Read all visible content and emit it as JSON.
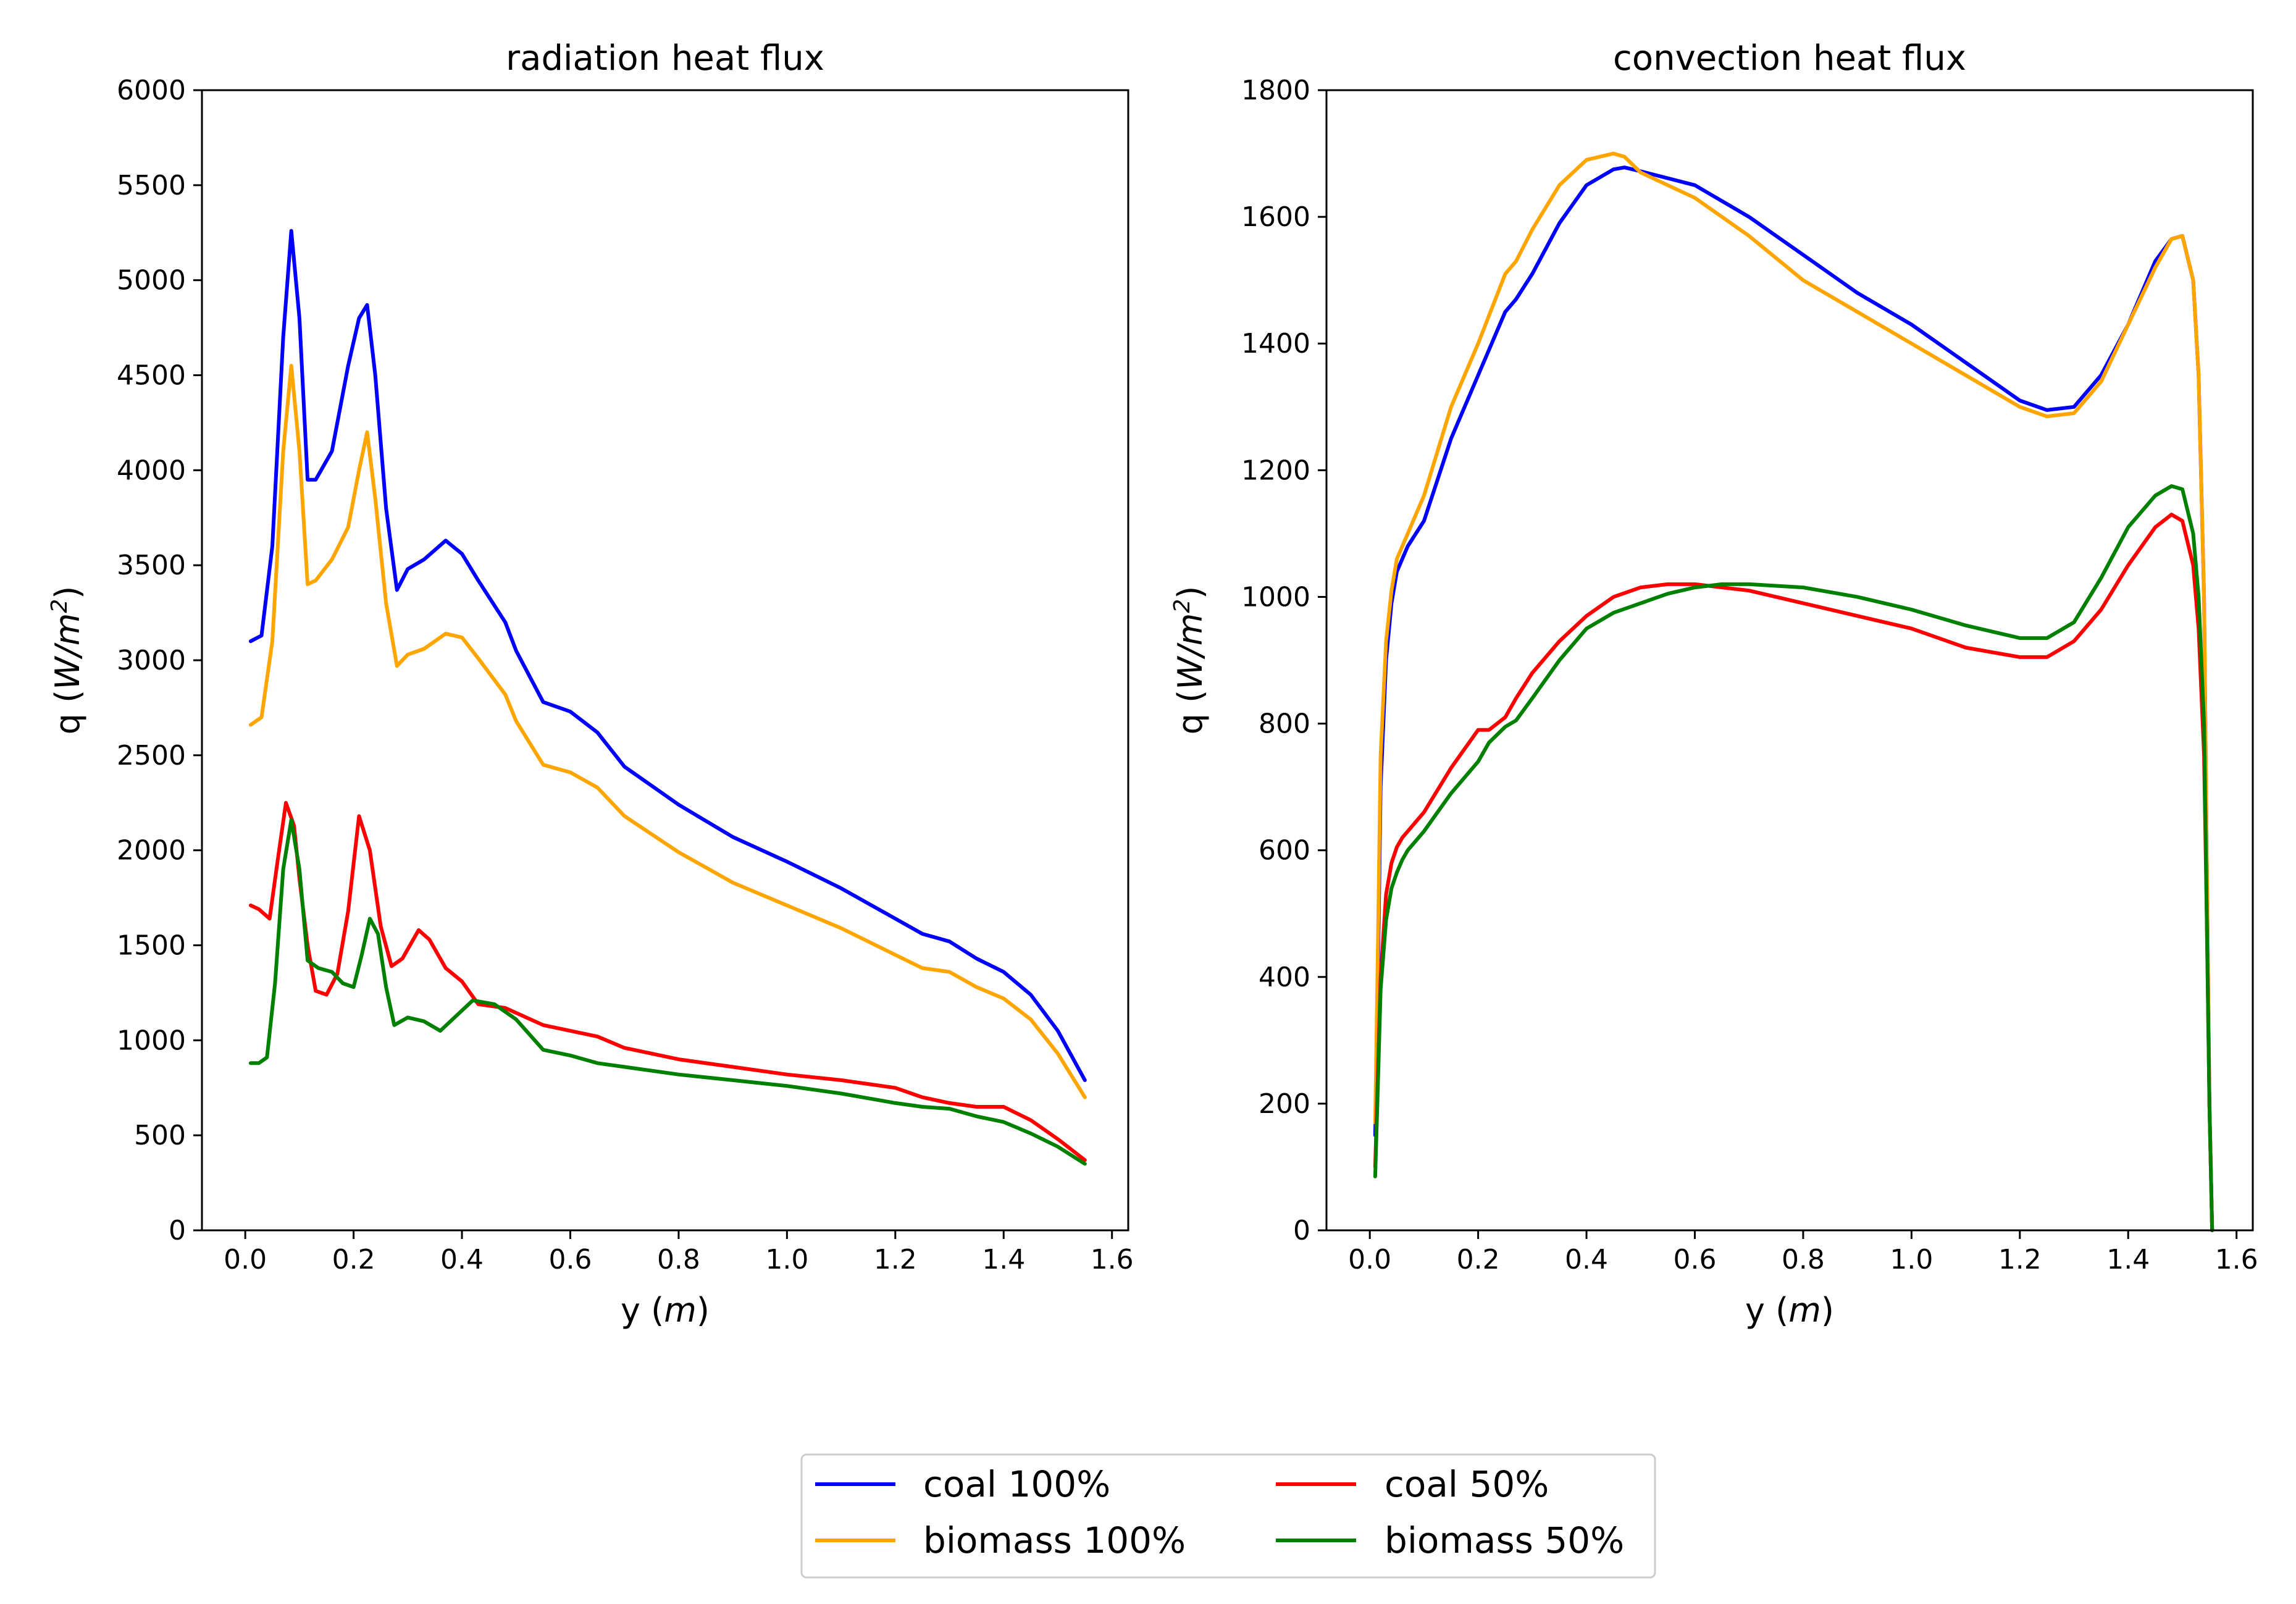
{
  "chart_data": [
    {
      "type": "line",
      "title": "radiation heat flux",
      "xlabel_prefix": "y (",
      "xlabel_unit": "m",
      "xlabel_suffix": ")",
      "ylabel_prefix": "q (",
      "ylabel_unit": "W/m",
      "ylabel_exp": "2",
      "ylabel_suffix": ")",
      "xlim": [
        -0.08,
        1.63
      ],
      "ylim": [
        0,
        6000
      ],
      "xticks": [
        0.0,
        0.2,
        0.4,
        0.6,
        0.8,
        1.0,
        1.2,
        1.4,
        1.6
      ],
      "xtick_labels": [
        "0.0",
        "0.2",
        "0.4",
        "0.6",
        "0.8",
        "1.0",
        "1.2",
        "1.4",
        "1.6"
      ],
      "yticks": [
        0,
        500,
        1000,
        1500,
        2000,
        2500,
        3000,
        3500,
        4000,
        4500,
        5000,
        5500,
        6000
      ],
      "ytick_labels": [
        "0",
        "500",
        "1000",
        "1500",
        "2000",
        "2500",
        "3000",
        "3500",
        "4000",
        "4500",
        "5000",
        "5500",
        "6000"
      ],
      "series": [
        {
          "name": "coal 100%",
          "color": "#0000ff",
          "x": [
            0.01,
            0.03,
            0.05,
            0.07,
            0.085,
            0.1,
            0.115,
            0.13,
            0.16,
            0.19,
            0.21,
            0.225,
            0.24,
            0.26,
            0.28,
            0.3,
            0.33,
            0.37,
            0.4,
            0.43,
            0.48,
            0.5,
            0.55,
            0.6,
            0.65,
            0.7,
            0.8,
            0.9,
            1.0,
            1.1,
            1.2,
            1.25,
            1.3,
            1.35,
            1.4,
            1.45,
            1.5,
            1.55
          ],
          "y": [
            3100,
            3130,
            3600,
            4700,
            5260,
            4800,
            3950,
            3950,
            4100,
            4550,
            4800,
            4870,
            4500,
            3800,
            3370,
            3480,
            3530,
            3630,
            3560,
            3420,
            3200,
            3050,
            2780,
            2730,
            2620,
            2440,
            2240,
            2070,
            1940,
            1800,
            1640,
            1560,
            1520,
            1430,
            1360,
            1240,
            1050,
            790
          ]
        },
        {
          "name": "biomass 100%",
          "color": "#ffa500",
          "x": [
            0.01,
            0.03,
            0.05,
            0.07,
            0.085,
            0.1,
            0.115,
            0.13,
            0.16,
            0.19,
            0.21,
            0.225,
            0.24,
            0.26,
            0.28,
            0.3,
            0.33,
            0.37,
            0.4,
            0.43,
            0.48,
            0.5,
            0.55,
            0.6,
            0.65,
            0.7,
            0.8,
            0.9,
            1.0,
            1.1,
            1.2,
            1.25,
            1.3,
            1.35,
            1.4,
            1.45,
            1.5,
            1.55
          ],
          "y": [
            2660,
            2700,
            3100,
            4100,
            4550,
            4100,
            3400,
            3420,
            3530,
            3700,
            4000,
            4200,
            3850,
            3300,
            2970,
            3030,
            3060,
            3140,
            3120,
            3010,
            2820,
            2680,
            2450,
            2410,
            2330,
            2180,
            1990,
            1830,
            1710,
            1590,
            1450,
            1380,
            1360,
            1280,
            1220,
            1110,
            930,
            700
          ]
        },
        {
          "name": "coal 50%",
          "color": "#ff0000",
          "x": [
            0.01,
            0.025,
            0.045,
            0.06,
            0.075,
            0.09,
            0.1,
            0.115,
            0.13,
            0.15,
            0.17,
            0.19,
            0.21,
            0.23,
            0.25,
            0.27,
            0.29,
            0.32,
            0.34,
            0.37,
            0.4,
            0.43,
            0.48,
            0.55,
            0.65,
            0.7,
            0.8,
            0.9,
            1.0,
            1.1,
            1.2,
            1.25,
            1.3,
            1.35,
            1.4,
            1.45,
            1.5,
            1.55
          ],
          "y": [
            1710,
            1690,
            1640,
            1950,
            2250,
            2130,
            1850,
            1500,
            1260,
            1240,
            1350,
            1680,
            2180,
            2000,
            1600,
            1390,
            1430,
            1580,
            1530,
            1380,
            1310,
            1190,
            1170,
            1080,
            1020,
            960,
            900,
            860,
            820,
            790,
            750,
            700,
            670,
            650,
            650,
            580,
            480,
            370
          ]
        },
        {
          "name": "biomass 50%",
          "color": "#008000",
          "x": [
            0.01,
            0.025,
            0.04,
            0.055,
            0.07,
            0.085,
            0.1,
            0.115,
            0.135,
            0.16,
            0.18,
            0.2,
            0.215,
            0.23,
            0.245,
            0.26,
            0.275,
            0.3,
            0.33,
            0.36,
            0.39,
            0.42,
            0.46,
            0.5,
            0.55,
            0.6,
            0.65,
            0.7,
            0.8,
            0.9,
            1.0,
            1.1,
            1.2,
            1.25,
            1.3,
            1.35,
            1.4,
            1.45,
            1.5,
            1.55
          ],
          "y": [
            880,
            880,
            910,
            1300,
            1900,
            2160,
            1900,
            1420,
            1380,
            1360,
            1300,
            1280,
            1450,
            1640,
            1560,
            1280,
            1080,
            1120,
            1100,
            1050,
            1130,
            1210,
            1190,
            1110,
            950,
            920,
            880,
            860,
            820,
            790,
            760,
            720,
            670,
            650,
            640,
            600,
            570,
            510,
            440,
            350
          ]
        }
      ]
    },
    {
      "type": "line",
      "title": "convection heat flux",
      "xlabel_prefix": "y (",
      "xlabel_unit": "m",
      "xlabel_suffix": ")",
      "ylabel_prefix": "q (",
      "ylabel_unit": "W/m",
      "ylabel_exp": "2",
      "ylabel_suffix": ")",
      "xlim": [
        -0.08,
        1.63
      ],
      "ylim": [
        0,
        1800
      ],
      "xticks": [
        0.0,
        0.2,
        0.4,
        0.6,
        0.8,
        1.0,
        1.2,
        1.4,
        1.6
      ],
      "xtick_labels": [
        "0.0",
        "0.2",
        "0.4",
        "0.6",
        "0.8",
        "1.0",
        "1.2",
        "1.4",
        "1.6"
      ],
      "yticks": [
        0,
        200,
        400,
        600,
        800,
        1000,
        1200,
        1400,
        1600,
        1800
      ],
      "ytick_labels": [
        "0",
        "200",
        "400",
        "600",
        "800",
        "1000",
        "1200",
        "1400",
        "1600",
        "1800"
      ],
      "series": [
        {
          "name": "coal 100%",
          "color": "#0000ff",
          "x": [
            0.01,
            0.015,
            0.02,
            0.03,
            0.04,
            0.05,
            0.07,
            0.1,
            0.15,
            0.2,
            0.25,
            0.27,
            0.3,
            0.35,
            0.4,
            0.45,
            0.47,
            0.5,
            0.6,
            0.7,
            0.8,
            0.9,
            1.0,
            1.1,
            1.2,
            1.25,
            1.3,
            1.35,
            1.4,
            1.45,
            1.48,
            1.5,
            1.52,
            1.53,
            1.54,
            1.545,
            1.55,
            1.555
          ],
          "y": [
            150,
            400,
            700,
            900,
            990,
            1040,
            1080,
            1120,
            1250,
            1350,
            1450,
            1470,
            1510,
            1590,
            1650,
            1675,
            1678,
            1672,
            1650,
            1600,
            1540,
            1480,
            1430,
            1370,
            1310,
            1295,
            1300,
            1350,
            1430,
            1530,
            1565,
            1570,
            1500,
            1350,
            1000,
            600,
            200,
            0
          ]
        },
        {
          "name": "biomass 100%",
          "color": "#ffa500",
          "x": [
            0.01,
            0.015,
            0.02,
            0.03,
            0.04,
            0.05,
            0.07,
            0.1,
            0.15,
            0.2,
            0.25,
            0.27,
            0.3,
            0.35,
            0.4,
            0.45,
            0.47,
            0.5,
            0.6,
            0.7,
            0.8,
            0.9,
            1.0,
            1.1,
            1.2,
            1.25,
            1.3,
            1.35,
            1.4,
            1.45,
            1.48,
            1.5,
            1.52,
            1.53,
            1.54,
            1.545,
            1.55,
            1.555
          ],
          "y": [
            170,
            450,
            750,
            930,
            1010,
            1060,
            1100,
            1160,
            1300,
            1400,
            1510,
            1530,
            1580,
            1650,
            1690,
            1700,
            1695,
            1670,
            1630,
            1570,
            1500,
            1450,
            1400,
            1350,
            1300,
            1285,
            1290,
            1340,
            1430,
            1520,
            1565,
            1570,
            1500,
            1350,
            1000,
            600,
            200,
            0
          ]
        },
        {
          "name": "coal 50%",
          "color": "#ff0000",
          "x": [
            0.01,
            0.015,
            0.02,
            0.03,
            0.04,
            0.05,
            0.06,
            0.07,
            0.1,
            0.15,
            0.2,
            0.22,
            0.25,
            0.27,
            0.3,
            0.35,
            0.4,
            0.45,
            0.5,
            0.55,
            0.6,
            0.7,
            0.8,
            0.9,
            1.0,
            1.1,
            1.2,
            1.25,
            1.3,
            1.35,
            1.4,
            1.45,
            1.48,
            1.5,
            1.52,
            1.53,
            1.54,
            1.545,
            1.55,
            1.555
          ],
          "y": [
            100,
            250,
            400,
            530,
            580,
            605,
            620,
            630,
            660,
            730,
            790,
            790,
            810,
            840,
            880,
            930,
            970,
            1000,
            1015,
            1020,
            1020,
            1010,
            990,
            970,
            950,
            920,
            905,
            905,
            930,
            980,
            1050,
            1110,
            1130,
            1120,
            1050,
            950,
            750,
            500,
            200,
            0
          ]
        },
        {
          "name": "biomass 50%",
          "color": "#008000",
          "x": [
            0.01,
            0.015,
            0.02,
            0.03,
            0.04,
            0.05,
            0.06,
            0.07,
            0.1,
            0.15,
            0.2,
            0.22,
            0.25,
            0.27,
            0.3,
            0.35,
            0.4,
            0.45,
            0.5,
            0.55,
            0.6,
            0.65,
            0.7,
            0.8,
            0.9,
            1.0,
            1.1,
            1.2,
            1.25,
            1.3,
            1.35,
            1.4,
            1.45,
            1.48,
            1.5,
            1.52,
            1.53,
            1.54,
            1.545,
            1.55,
            1.555
          ],
          "y": [
            85,
            230,
            380,
            490,
            540,
            565,
            585,
            600,
            630,
            690,
            740,
            770,
            795,
            805,
            840,
            900,
            950,
            975,
            990,
            1005,
            1015,
            1020,
            1020,
            1015,
            1000,
            980,
            955,
            935,
            935,
            960,
            1030,
            1110,
            1160,
            1175,
            1170,
            1100,
            1000,
            800,
            500,
            200,
            0
          ]
        }
      ]
    }
  ],
  "legend": {
    "items": [
      {
        "label": "coal 100%",
        "color": "#0000ff"
      },
      {
        "label": "coal 50%",
        "color": "#ff0000"
      },
      {
        "label": "biomass 100%",
        "color": "#ffa500"
      },
      {
        "label": "biomass 50%",
        "color": "#008000"
      }
    ]
  }
}
